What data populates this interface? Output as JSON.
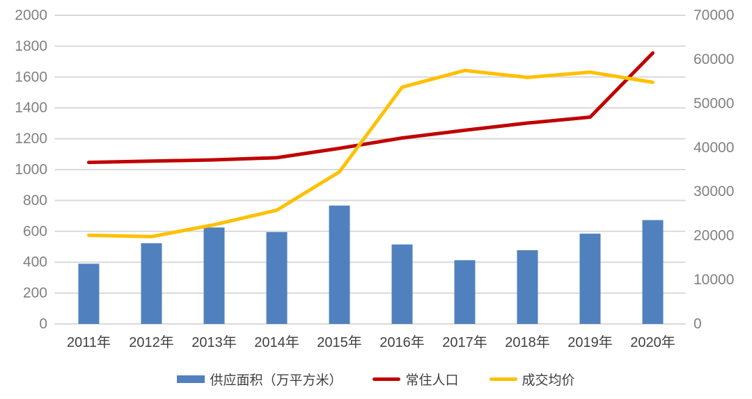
{
  "chart_data": {
    "type": "combo",
    "title": "",
    "categories": [
      "2011年",
      "2012年",
      "2013年",
      "2014年",
      "2015年",
      "2016年",
      "2017年",
      "2018年",
      "2019年",
      "2020年"
    ],
    "series": [
      {
        "name": "供应面积（万平方米）",
        "type": "bar",
        "axis": "left",
        "color": "#5081BE",
        "values": [
          390,
          523,
          625,
          595,
          767,
          515,
          413,
          478,
          585,
          673
        ]
      },
      {
        "name": "常住人口",
        "type": "line",
        "axis": "left",
        "color": "#C00000",
        "values": [
          1047,
          1055,
          1063,
          1077,
          1138,
          1205,
          1255,
          1302,
          1340,
          1756
        ]
      },
      {
        "name": "成交均价",
        "type": "line",
        "axis": "right",
        "color": "#FFC000",
        "values": [
          20100,
          19800,
          22500,
          25800,
          34500,
          53700,
          57500,
          55900,
          57100,
          54800
        ]
      }
    ],
    "left_axis": {
      "min": 0,
      "max": 2000,
      "step": 200,
      "tick_labels": [
        "0",
        "200",
        "400",
        "600",
        "800",
        "1000",
        "1200",
        "1400",
        "1600",
        "1800",
        "2000"
      ]
    },
    "right_axis": {
      "min": 0,
      "max": 70000,
      "step": 10000,
      "tick_labels": [
        "0",
        "10000",
        "20000",
        "30000",
        "40000",
        "50000",
        "60000",
        "70000"
      ]
    },
    "grid": true,
    "legend_position": "bottom",
    "style": {
      "gridline_color": "#D9D9D9",
      "value_label_color": "#808080",
      "category_label_color": "#404040",
      "background_color": "#FFFFFF"
    }
  }
}
